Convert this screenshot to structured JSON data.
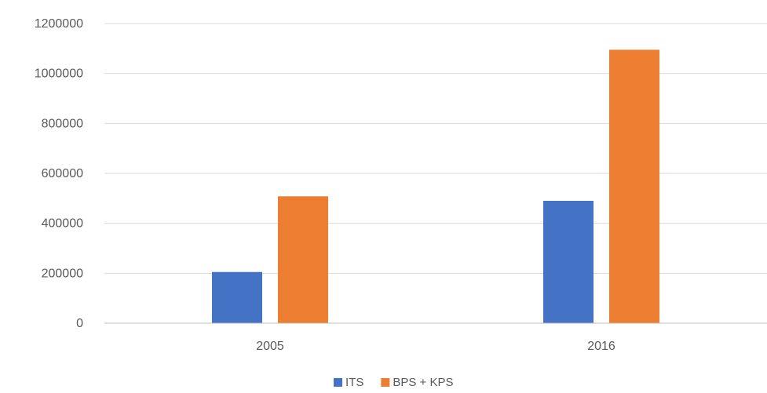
{
  "chart_data": {
    "type": "bar",
    "categories": [
      "2005",
      "2016"
    ],
    "series": [
      {
        "name": "ITS",
        "values": [
          205000,
          490000
        ],
        "color": "#4472C4"
      },
      {
        "name": "BPS + KPS",
        "values": [
          508000,
          1095000
        ],
        "color": "#ED7D31"
      }
    ],
    "y_ticks": [
      "0",
      "200000",
      "400000",
      "600000",
      "800000",
      "1000000",
      "1200000"
    ],
    "ylim": [
      0,
      1200000
    ],
    "grid": true,
    "legend_position": "bottom-center",
    "gridline_color": "#D9D9D9",
    "axis_color": "#BFBFBF"
  }
}
